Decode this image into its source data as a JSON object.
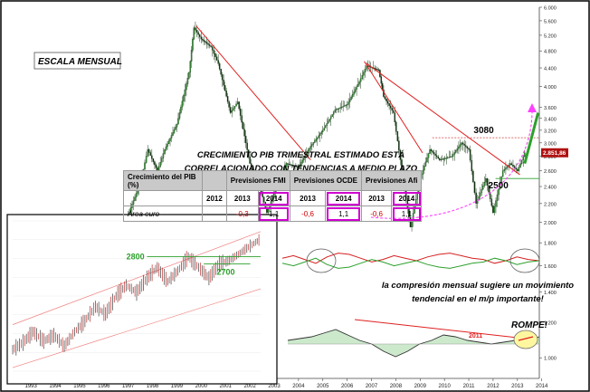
{
  "chart_data": [
    {
      "type": "line",
      "title": "ESCALA MENSUAL",
      "scale": "log",
      "x_ticks": [
        "1993",
        "1994",
        "1995",
        "1996",
        "1997",
        "1998",
        "1999",
        "2000",
        "2001",
        "2002",
        "2003",
        "2004",
        "2005",
        "2006",
        "2007",
        "2008",
        "2009",
        "2010",
        "2011",
        "2012",
        "2013",
        "2014"
      ],
      "y_ticks": [
        "6.000",
        "5.600",
        "5.200",
        "4.800",
        "4.400",
        "4.000",
        "3.600",
        "3.400",
        "3.200",
        "3.000",
        "2.800",
        "2.600",
        "2.400",
        "2.200",
        "2.000",
        "1.800",
        "1.600",
        "1.400",
        "1.200",
        "1.000"
      ],
      "last_value_label": "2.851,86",
      "levels": [
        {
          "label": "3080",
          "value": 3080,
          "color": "#d04040"
        },
        {
          "label": "2500",
          "value": 2500,
          "color": "#2ca02c"
        }
      ],
      "series": [
        {
          "values": [
            {
              "x": 1992.7,
              "y": 1150
            },
            {
              "x": 1993.0,
              "y": 1000
            },
            {
              "x": 1993.5,
              "y": 1120
            },
            {
              "x": 1994.0,
              "y": 1270
            },
            {
              "x": 1994.5,
              "y": 1180
            },
            {
              "x": 1995.0,
              "y": 1200
            },
            {
              "x": 1995.5,
              "y": 1300
            },
            {
              "x": 1996.0,
              "y": 1330
            },
            {
              "x": 1996.5,
              "y": 1480
            },
            {
              "x": 1997.0,
              "y": 1680
            },
            {
              "x": 1997.6,
              "y": 2150
            },
            {
              "x": 1998.0,
              "y": 2450
            },
            {
              "x": 1998.3,
              "y": 2900
            },
            {
              "x": 1998.7,
              "y": 2600
            },
            {
              "x": 1999.0,
              "y": 2900
            },
            {
              "x": 1999.5,
              "y": 3300
            },
            {
              "x": 2000.0,
              "y": 4300
            },
            {
              "x": 2000.2,
              "y": 5400
            },
            {
              "x": 2000.5,
              "y": 5100
            },
            {
              "x": 2000.9,
              "y": 4900
            },
            {
              "x": 2001.2,
              "y": 4500
            },
            {
              "x": 2001.7,
              "y": 3500
            },
            {
              "x": 2002.0,
              "y": 3700
            },
            {
              "x": 2002.5,
              "y": 2700
            },
            {
              "x": 2002.9,
              "y": 2400
            },
            {
              "x": 2003.2,
              "y": 2100
            },
            {
              "x": 2003.6,
              "y": 2400
            },
            {
              "x": 2004.0,
              "y": 2700
            },
            {
              "x": 2004.5,
              "y": 2650
            },
            {
              "x": 2005.0,
              "y": 2950
            },
            {
              "x": 2005.5,
              "y": 3200
            },
            {
              "x": 2006.0,
              "y": 3550
            },
            {
              "x": 2006.5,
              "y": 3650
            },
            {
              "x": 2007.0,
              "y": 4100
            },
            {
              "x": 2007.3,
              "y": 4450
            },
            {
              "x": 2007.8,
              "y": 4350
            },
            {
              "x": 2008.0,
              "y": 3800
            },
            {
              "x": 2008.4,
              "y": 3500
            },
            {
              "x": 2008.8,
              "y": 2500
            },
            {
              "x": 2009.1,
              "y": 1950
            },
            {
              "x": 2009.5,
              "y": 2500
            },
            {
              "x": 2009.9,
              "y": 2900
            },
            {
              "x": 2010.3,
              "y": 2750
            },
            {
              "x": 2010.8,
              "y": 2800
            },
            {
              "x": 2011.2,
              "y": 3000
            },
            {
              "x": 2011.5,
              "y": 2900
            },
            {
              "x": 2011.8,
              "y": 2200
            },
            {
              "x": 2012.2,
              "y": 2500
            },
            {
              "x": 2012.5,
              "y": 2100
            },
            {
              "x": 2012.9,
              "y": 2600
            },
            {
              "x": 2013.2,
              "y": 2700
            },
            {
              "x": 2013.5,
              "y": 2600
            },
            {
              "x": 2013.8,
              "y": 2850
            }
          ]
        }
      ]
    },
    {
      "type": "line",
      "title": "",
      "levels": [
        {
          "label": "2800",
          "value": 2800,
          "color": "#2ca02c"
        },
        {
          "label": "2700",
          "value": 2700,
          "color": "#2ca02c"
        }
      ],
      "series": [
        {
          "values": [
            {
              "x": 0,
              "y": 1500
            },
            {
              "x": 4,
              "y": 1600
            },
            {
              "x": 8,
              "y": 1750
            },
            {
              "x": 12,
              "y": 1620
            },
            {
              "x": 16,
              "y": 1700
            },
            {
              "x": 20,
              "y": 1550
            },
            {
              "x": 24,
              "y": 1750
            },
            {
              "x": 28,
              "y": 1900
            },
            {
              "x": 32,
              "y": 2100
            },
            {
              "x": 36,
              "y": 2000
            },
            {
              "x": 40,
              "y": 2250
            },
            {
              "x": 44,
              "y": 2400
            },
            {
              "x": 48,
              "y": 2300
            },
            {
              "x": 52,
              "y": 2500
            },
            {
              "x": 56,
              "y": 2650
            },
            {
              "x": 60,
              "y": 2450
            },
            {
              "x": 64,
              "y": 2600
            },
            {
              "x": 68,
              "y": 2800
            },
            {
              "x": 72,
              "y": 2650
            },
            {
              "x": 76,
              "y": 2500
            },
            {
              "x": 80,
              "y": 2700
            },
            {
              "x": 84,
              "y": 2750
            },
            {
              "x": 88,
              "y": 2850
            },
            {
              "x": 92,
              "y": 2950
            },
            {
              "x": 96,
              "y": 3050
            }
          ]
        }
      ]
    },
    {
      "type": "line",
      "title": "",
      "series": [
        {
          "color": "#d62020",
          "values": [
            0.2,
            0.4,
            0.1,
            -0.2,
            0.3,
            0.6,
            0.5,
            0.2,
            -0.1,
            0.1,
            0.4,
            0.2,
            0.0,
            0.3,
            0.5,
            0.6,
            0.4,
            0.2,
            0.1,
            -0.2,
            0.0,
            0.3,
            0.1,
            0.0
          ]
        },
        {
          "color": "#2ca02c",
          "values": [
            -0.2,
            -0.4,
            -0.1,
            0.2,
            -0.3,
            -0.6,
            -0.5,
            -0.2,
            0.1,
            -0.1,
            -0.4,
            -0.2,
            0.0,
            -0.3,
            -0.5,
            -0.6,
            -0.4,
            -0.2,
            -0.1,
            0.2,
            0.0,
            -0.3,
            -0.1,
            0.0
          ]
        }
      ]
    },
    {
      "type": "area",
      "title": "",
      "annotation": "2011",
      "values": [
        0.1,
        0.15,
        0.2,
        0.3,
        0.4,
        0.25,
        0.1,
        0.0,
        -0.2,
        -0.35,
        -0.2,
        0.0,
        0.1,
        0.25,
        0.2,
        0.1,
        0.05,
        0.0,
        0.05,
        0.1,
        0.1,
        0.2
      ]
    }
  ],
  "labels": {
    "escala": "ESCALA MENSUAL",
    "main_note": "CRECIMIENTO PIB TRIMESTRAL ESTIMADO ESTÁ CORRELACIONADO CON TENDENCIAS A MEDIO PLAZO",
    "compress_note": "la compresión mensual sugiere un movimiento tendencial en el m/p importante!",
    "rompe": "ROMPE!"
  },
  "table": {
    "header": [
      "Crecimiento del PIB (%)",
      "Previsiones FMI",
      "Previsiones OCDE",
      "Previsiones Afi"
    ],
    "years": [
      "2012",
      "2013",
      "2014",
      "2013",
      "2014",
      "2013",
      "2014"
    ],
    "region": "Área euro",
    "values": [
      "",
      "-0,3",
      "1,1",
      "-0,6",
      "1,1",
      "-0,6",
      "1,1"
    ]
  },
  "colors": {
    "trend": "#e02020",
    "highlight": "#d000d0",
    "green": "#2ca02c",
    "pink": "#ff40ff"
  }
}
